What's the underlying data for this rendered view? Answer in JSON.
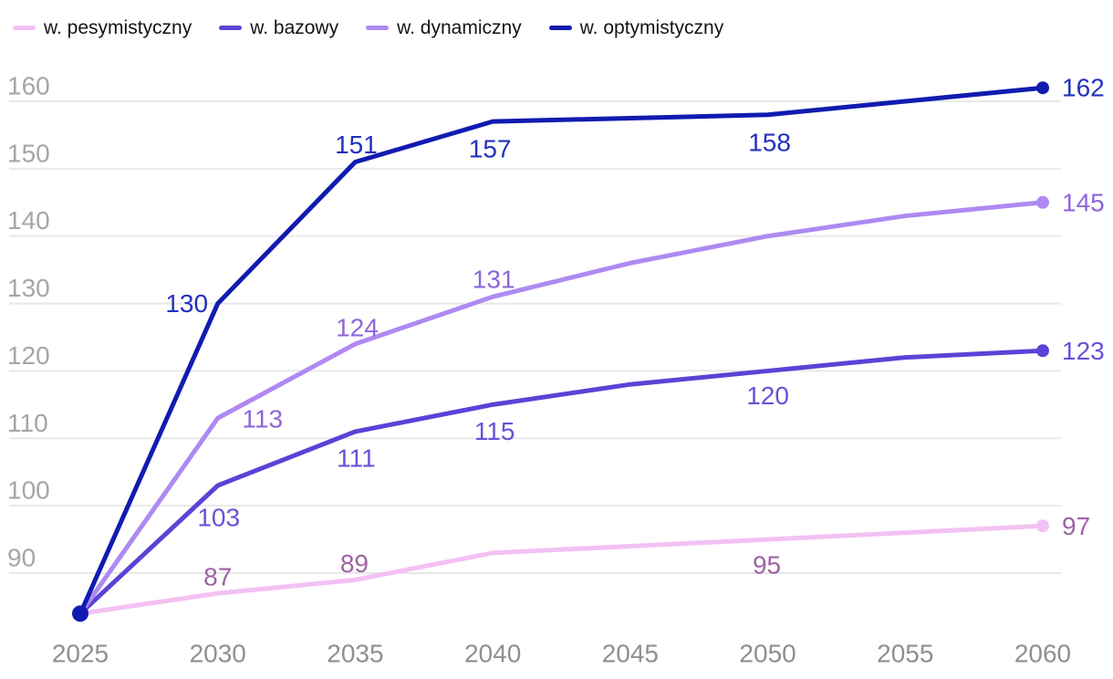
{
  "chart_data": {
    "type": "line",
    "title": "",
    "xlabel": "",
    "ylabel": "",
    "x": [
      2025,
      2030,
      2035,
      2040,
      2045,
      2050,
      2055,
      2060
    ],
    "x_tick_labels": [
      "2025",
      "2030",
      "2035",
      "2040",
      "2045",
      "2050",
      "2055",
      "2060"
    ],
    "y_ticks": [
      160,
      150,
      140,
      130,
      120,
      110,
      100,
      90
    ],
    "ylim": [
      84,
      163
    ],
    "grid": true,
    "legend_position": "top-left",
    "axis": {
      "grid_color": "#e8e8e8",
      "y_tick_color": "#a6a6a6",
      "x_tick_color": "#8f8f8f",
      "tick_font_size": 28
    },
    "start_dot": {
      "x": 2025,
      "value": 84,
      "color": "#111bb0"
    },
    "series": [
      {
        "id": "pesymistyczny",
        "name": "w. pesymistyczny",
        "color": "#f3c1f3",
        "label_color": "#9d63a4",
        "values": [
          84,
          87,
          89,
          93,
          94,
          95,
          96,
          97
        ],
        "point_labels": [
          {
            "x": 2030,
            "text": "87",
            "dx": 0,
            "dy": -18
          },
          {
            "x": 2035,
            "text": "89",
            "dx": -1,
            "dy": -18
          },
          {
            "x": 2050,
            "text": "95",
            "dx": -1,
            "dy": 28
          }
        ],
        "end_label": "97",
        "end_dot": true
      },
      {
        "id": "bazowy",
        "name": "w. bazowy",
        "color": "#5a43d6",
        "label_color": "#6553d8",
        "values": [
          84,
          103,
          111,
          115,
          118,
          120,
          122,
          123
        ],
        "point_labels": [
          {
            "x": 2030,
            "text": "103",
            "dx": 1,
            "dy": 35
          },
          {
            "x": 2035,
            "text": "111",
            "dx": 1,
            "dy": 29
          },
          {
            "x": 2040,
            "text": "115",
            "dx": 2,
            "dy": 29
          },
          {
            "x": 2050,
            "text": "120",
            "dx": 0,
            "dy": 27
          }
        ],
        "end_label": "123",
        "end_dot": true
      },
      {
        "id": "dynamiczny",
        "name": "w. dynamiczny",
        "color": "#ae89f2",
        "label_color": "#8e66d9",
        "values": [
          84,
          113,
          124,
          131,
          136,
          140,
          143,
          145
        ],
        "point_labels": [
          {
            "x": 2030,
            "text": "113",
            "dx": 49,
            "dy": 1
          },
          {
            "x": 2035,
            "text": "124",
            "dx": 2,
            "dy": -18
          },
          {
            "x": 2040,
            "text": "131",
            "dx": 1,
            "dy": -19
          }
        ],
        "end_label": "145",
        "end_dot": true
      },
      {
        "id": "optymistyczny",
        "name": "w. optymistyczny",
        "color": "#111bb0",
        "label_color": "#2231bd",
        "values": [
          84,
          130,
          151,
          157,
          157.5,
          158,
          160,
          162
        ],
        "point_labels": [
          {
            "x": 2030,
            "text": "130",
            "dx": -34,
            "dy": 0
          },
          {
            "x": 2035,
            "text": "151",
            "dx": 1,
            "dy": -19
          },
          {
            "x": 2040,
            "text": "157",
            "dx": -3,
            "dy": 30
          },
          {
            "x": 2050,
            "text": "158",
            "dx": 2,
            "dy": 30
          }
        ],
        "end_label": "162",
        "end_dot": true
      }
    ]
  }
}
